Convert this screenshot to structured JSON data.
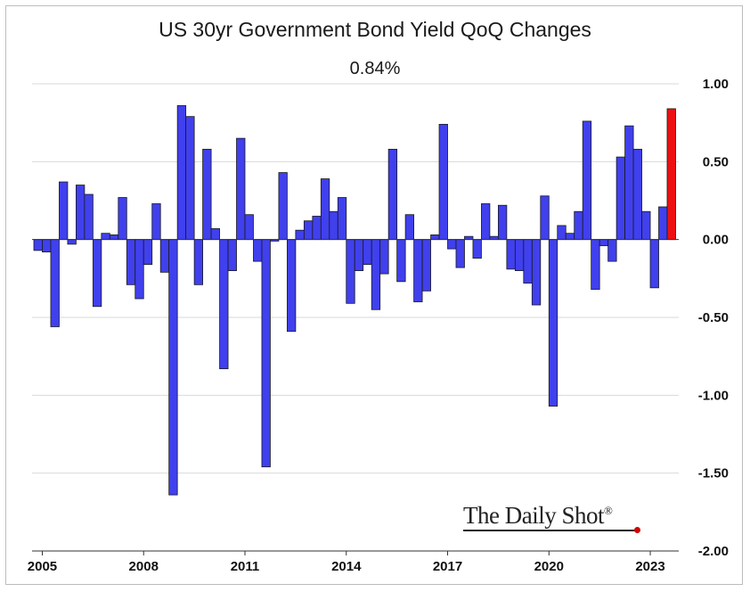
{
  "chart_data": {
    "type": "bar",
    "title": "US 30yr Government Bond Yield QoQ Changes",
    "annotation": "0.84%",
    "ylim": [
      -2.0,
      1.0
    ],
    "yticks": [
      "1.00",
      "0.50",
      "0.00",
      "-0.50",
      "-1.00",
      "-1.50",
      "-2.00"
    ],
    "ytick_values": [
      1.0,
      0.5,
      0.0,
      -0.5,
      -1.0,
      -1.5,
      -2.0
    ],
    "xtick_labels": [
      "2005",
      "2008",
      "2011",
      "2014",
      "2017",
      "2020",
      "2023"
    ],
    "xtick_years": [
      2005,
      2008,
      2011,
      2014,
      2017,
      2020,
      2023
    ],
    "start_year": 2004.75,
    "bar_color": "#4040ee",
    "highlight_color": "#ee1111",
    "values": [
      -0.07,
      -0.08,
      -0.56,
      0.37,
      -0.03,
      0.35,
      0.29,
      -0.43,
      0.04,
      0.03,
      0.27,
      -0.29,
      -0.38,
      -0.16,
      0.23,
      -0.21,
      -1.64,
      0.86,
      0.79,
      -0.29,
      0.58,
      0.07,
      -0.83,
      -0.2,
      0.65,
      0.16,
      -0.14,
      -1.46,
      -0.01,
      0.43,
      -0.59,
      0.06,
      0.12,
      0.15,
      0.39,
      0.18,
      0.27,
      -0.41,
      -0.2,
      -0.16,
      -0.45,
      -0.22,
      0.58,
      -0.27,
      0.16,
      -0.4,
      -0.33,
      0.03,
      0.74,
      -0.06,
      -0.18,
      0.02,
      -0.12,
      0.23,
      0.02,
      0.22,
      -0.19,
      -0.2,
      -0.28,
      -0.42,
      0.28,
      -1.07,
      0.09,
      0.04,
      0.18,
      0.76,
      -0.32,
      -0.04,
      -0.14,
      0.53,
      0.73,
      0.58,
      0.18,
      -0.31,
      0.21,
      0.84
    ]
  },
  "logo": {
    "text": "The Daily Shot",
    "mark": "®"
  }
}
